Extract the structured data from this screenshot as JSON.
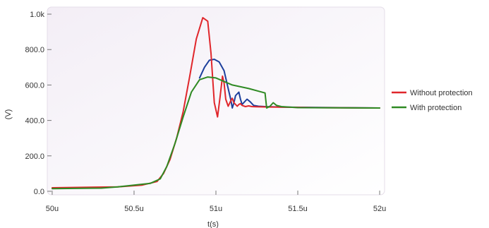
{
  "chart_data": {
    "type": "line",
    "xlabel": "t(s)",
    "ylabel": "(V)",
    "xlim": [
      49.97,
      52.03
    ],
    "ylim": [
      -20,
      1040
    ],
    "grid": false,
    "legend_position": "right",
    "x_ticks": [
      {
        "value": 50.0,
        "label": "50u"
      },
      {
        "value": 50.5,
        "label": "50.5u"
      },
      {
        "value": 51.0,
        "label": "51u"
      },
      {
        "value": 51.5,
        "label": "51.5u"
      },
      {
        "value": 52.0,
        "label": "52u"
      }
    ],
    "y_ticks": [
      {
        "value": 0,
        "label": "0.0"
      },
      {
        "value": 200,
        "label": "200.0"
      },
      {
        "value": 400,
        "label": "400.0"
      },
      {
        "value": 600,
        "label": "600.0"
      },
      {
        "value": 800,
        "label": "800.0"
      },
      {
        "value": 1000,
        "label": "1.0k"
      }
    ],
    "series": [
      {
        "name": "Without protection",
        "color": "#e0262b",
        "x": [
          50.0,
          50.4,
          50.55,
          50.64,
          50.68,
          50.72,
          50.76,
          50.8,
          50.84,
          50.88,
          50.92,
          50.95,
          50.97,
          50.99,
          51.01,
          51.025,
          51.04,
          51.05,
          51.06,
          51.075,
          51.09,
          51.1,
          51.11,
          51.13,
          51.14,
          51.15,
          51.16,
          51.18,
          51.2,
          51.22,
          51.25,
          51.3,
          51.4,
          51.6,
          52.0
        ],
        "y": [
          20,
          25,
          35,
          55,
          100,
          180,
          300,
          450,
          650,
          860,
          980,
          960,
          780,
          500,
          420,
          530,
          650,
          610,
          520,
          480,
          510,
          525,
          500,
          480,
          490,
          495,
          485,
          478,
          482,
          478,
          477,
          476,
          475,
          472,
          470
        ]
      },
      {
        "name": "",
        "color": "#1d3f9c",
        "x": [
          50.9,
          50.93,
          50.96,
          50.99,
          51.02,
          51.05,
          51.07,
          51.09,
          51.1,
          51.11,
          51.12,
          51.14,
          51.15,
          51.16,
          51.17,
          51.19,
          51.21,
          51.23,
          51.26,
          51.3,
          51.4,
          52.0
        ],
        "y": [
          640,
          700,
          740,
          745,
          730,
          680,
          600,
          520,
          470,
          500,
          540,
          560,
          520,
          490,
          500,
          520,
          505,
          485,
          480,
          478,
          475,
          470
        ]
      },
      {
        "name": "With protection",
        "color": "#2f8a23",
        "x": [
          50.0,
          50.3,
          50.4,
          50.5,
          50.6,
          50.66,
          50.7,
          50.75,
          50.8,
          50.85,
          50.9,
          50.95,
          51.0,
          51.05,
          51.1,
          51.2,
          51.3,
          51.31,
          51.33,
          51.35,
          51.37,
          51.4,
          51.5,
          52.0
        ],
        "y": [
          15,
          18,
          25,
          35,
          45,
          70,
          140,
          270,
          420,
          560,
          630,
          645,
          640,
          620,
          600,
          580,
          555,
          470,
          480,
          500,
          485,
          478,
          472,
          470
        ]
      }
    ]
  }
}
